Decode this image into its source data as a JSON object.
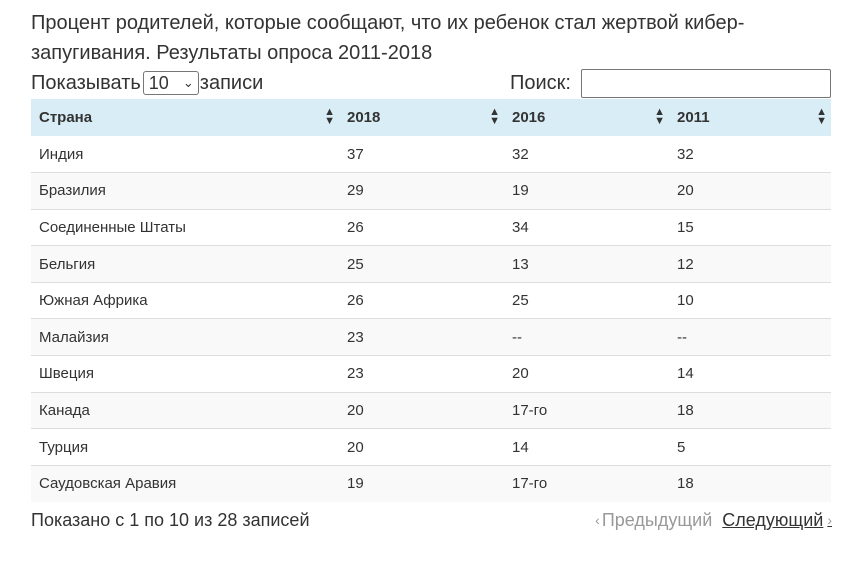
{
  "title": "Процент родителей, которые сообщают, что их ребенок стал жертвой кибер­запугивания. Результаты опроса 2011-2018",
  "controls": {
    "show_label": "Показывать",
    "show_value": "10",
    "records_label": "записи",
    "search_label": "Поиск:",
    "search_value": ""
  },
  "table": {
    "columns": [
      "Страна",
      "2018",
      "2016",
      "2011"
    ],
    "rows": [
      [
        "Индия",
        "37",
        "32",
        "32"
      ],
      [
        "Бразилия",
        "29",
        "19",
        "20"
      ],
      [
        "Соединенные Штаты",
        "26",
        "34",
        "15"
      ],
      [
        "Бельгия",
        "25",
        "13",
        "12"
      ],
      [
        "Южная Африка",
        "26",
        "25",
        "10"
      ],
      [
        "Малайзия",
        "23",
        "--",
        "--"
      ],
      [
        "Швеция",
        "23",
        "20",
        "14"
      ],
      [
        "Канада",
        "20",
        "17-го",
        "18"
      ],
      [
        "Турция",
        "20",
        "14",
        "5"
      ],
      [
        "Саудовская Аравия",
        "19",
        "17-го",
        "18"
      ]
    ]
  },
  "footer": {
    "info": "Показано с 1 по 10 из 28 записей",
    "prev": "Предыдущий",
    "next": "Следующий"
  },
  "icons": {
    "sort": "sort-both-icon",
    "prev": "chevron-left-icon",
    "next": "chevron-right-icon",
    "select": "chevron-down-icon"
  }
}
